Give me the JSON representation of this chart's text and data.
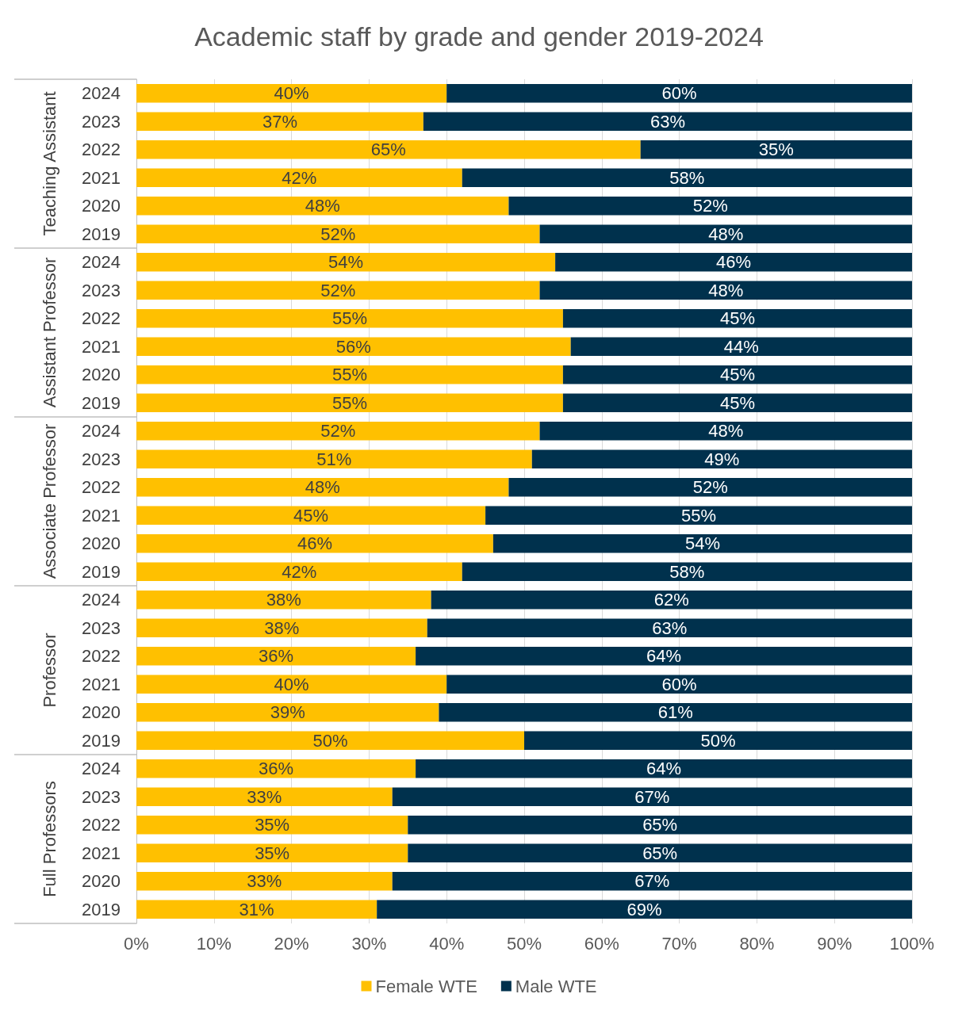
{
  "chart_data": {
    "type": "bar",
    "orientation": "horizontal",
    "stacked": true,
    "title": "Academic staff by grade and gender 2019-2024",
    "categories": [
      "2024",
      "2023",
      "2022",
      "2021",
      "2020",
      "2019",
      "2024",
      "2023",
      "2022",
      "2021",
      "2020",
      "2019",
      "2024",
      "2023",
      "2022",
      "2021",
      "2020",
      "2019",
      "2024",
      "2023",
      "2022",
      "2021",
      "2020",
      "2019",
      "2024",
      "2023",
      "2022",
      "2021",
      "2020",
      "2019"
    ],
    "annotations": [
      "Teaching Assistant",
      "Assistant Professor",
      "Associate Professor",
      "Professor",
      "Full Professors"
    ],
    "series": [
      {
        "name": "Female WTE",
        "color": "#ffc000",
        "values": [
          40,
          37,
          65,
          42,
          48,
          52,
          54,
          52,
          55,
          56,
          55,
          55,
          52,
          51,
          48,
          45,
          46,
          42,
          38,
          37.5,
          36,
          40,
          39,
          50,
          36,
          33,
          35,
          35,
          33,
          31
        ],
        "value_labels": [
          "40%",
          "37%",
          "65%",
          "42%",
          "48%",
          "52%",
          "54%",
          "52%",
          "55%",
          "56%",
          "55%",
          "55%",
          "52%",
          "51%",
          "48%",
          "45%",
          "46%",
          "42%",
          "38%",
          "38%",
          "36%",
          "40%",
          "39%",
          "50%",
          "36%",
          "33%",
          "35%",
          "35%",
          "33%",
          "31%"
        ]
      },
      {
        "name": "Male WTE",
        "color": "#00314d",
        "values": [
          60,
          63,
          35,
          58,
          52,
          48,
          46,
          48,
          45,
          44,
          45,
          45,
          48,
          49,
          52,
          55,
          54,
          58,
          62,
          62.5,
          64,
          60,
          61,
          50,
          64,
          67,
          65,
          65,
          67,
          69
        ],
        "value_labels": [
          "60%",
          "63%",
          "35%",
          "58%",
          "52%",
          "48%",
          "46%",
          "48%",
          "45%",
          "44%",
          "45%",
          "45%",
          "48%",
          "49%",
          "52%",
          "55%",
          "54%",
          "58%",
          "62%",
          "63%",
          "64%",
          "60%",
          "61%",
          "50%",
          "64%",
          "67%",
          "65%",
          "65%",
          "67%",
          "69%"
        ]
      }
    ],
    "xlim": [
      0,
      100
    ],
    "xticks": [
      {
        "value": 0,
        "label": "0%"
      },
      {
        "value": 10,
        "label": "10%"
      },
      {
        "value": 20,
        "label": "20%"
      },
      {
        "value": 30,
        "label": "30%"
      },
      {
        "value": 40,
        "label": "40%"
      },
      {
        "value": 50,
        "label": "50%"
      },
      {
        "value": 60,
        "label": "60%"
      },
      {
        "value": 70,
        "label": "70%"
      },
      {
        "value": 80,
        "label": "80%"
      },
      {
        "value": 90,
        "label": "90%"
      },
      {
        "value": 100,
        "label": "100%"
      }
    ],
    "grid": "x",
    "legend": "bottom"
  }
}
